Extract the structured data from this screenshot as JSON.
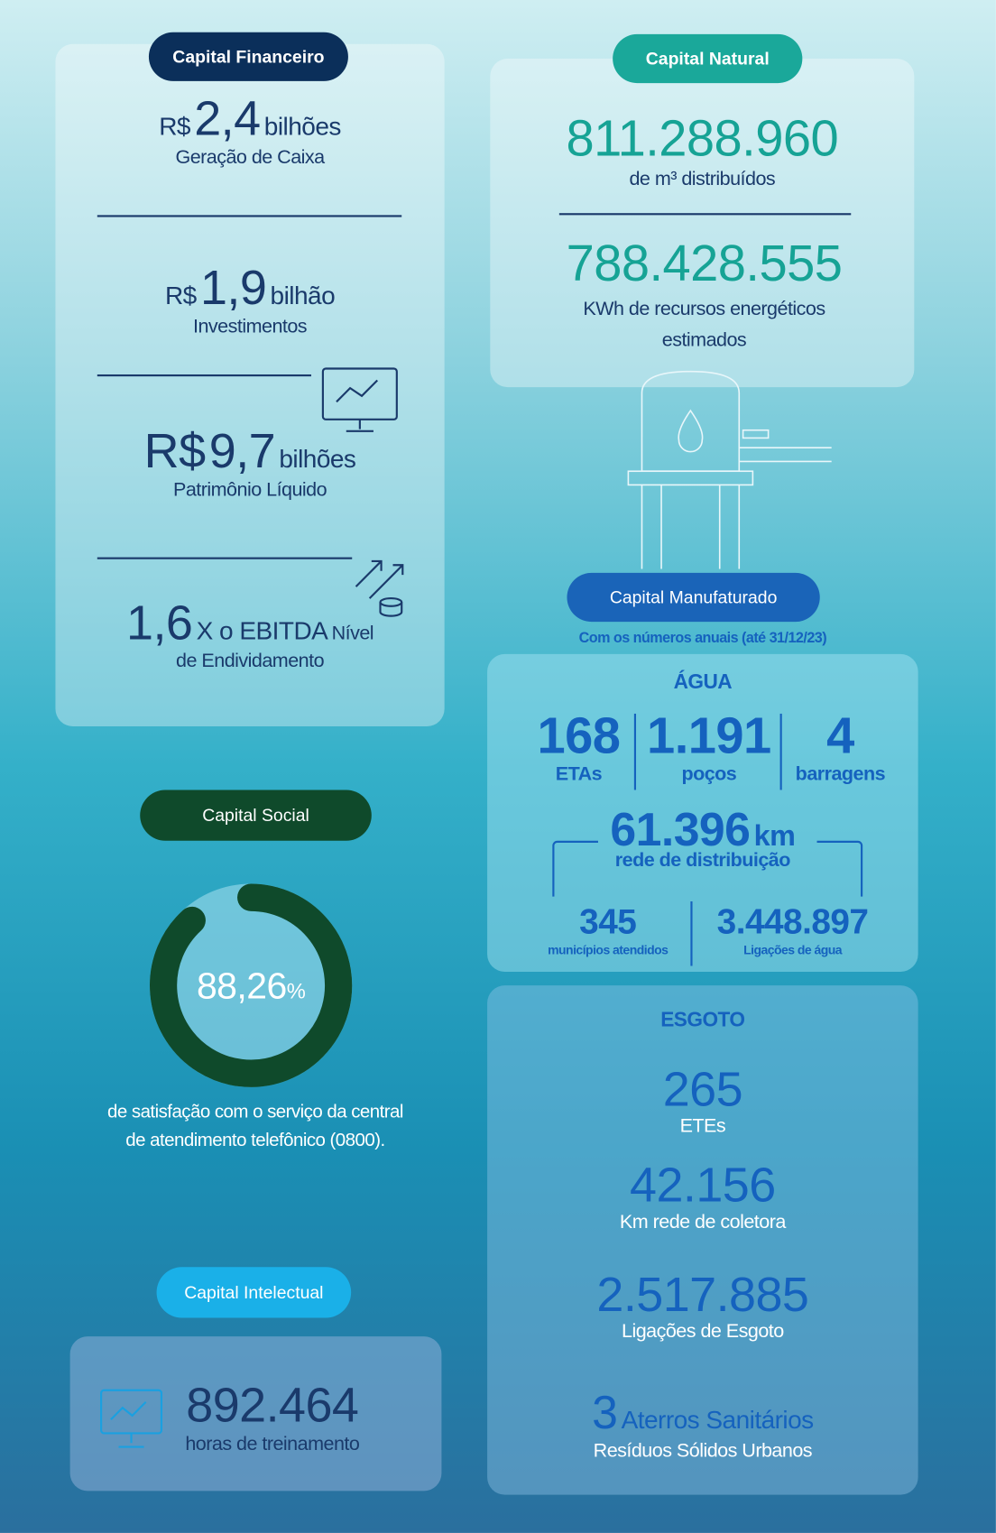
{
  "financial": {
    "badge": "Capital Financeiro",
    "items": [
      {
        "prefix": "R$",
        "value": "2,4",
        "unit": "bilhões",
        "label": "Geração de Caixa"
      },
      {
        "prefix": "R$",
        "value": "1,9",
        "unit": "bilhão",
        "label": "Investimentos"
      },
      {
        "prefix": "R$",
        "value": "9,7",
        "unit": "bilhões",
        "label": "Patrimônio Líquido"
      },
      {
        "value": "1,6",
        "unit": "X o EBITDA",
        "label": "Nível de Endividamento"
      }
    ]
  },
  "natural": {
    "badge": "Capital Natural",
    "items": [
      {
        "value": "811.288.960",
        "label": "de m³ distribuídos"
      },
      {
        "value": "788.428.555",
        "label": "KWh de recursos energéticos estimados"
      }
    ]
  },
  "manufactured": {
    "badge": "Capital Manufaturado",
    "subtitle": "Com os números anuais (até 31/12/23)",
    "water": {
      "title": "ÁGUA",
      "stats": [
        {
          "value": "168",
          "label": "ETAs"
        },
        {
          "value": "1.191",
          "label": "poços"
        },
        {
          "value": "4",
          "label": "barragens"
        }
      ],
      "network": {
        "value": "61.396",
        "unit": "km",
        "label": "rede de distribuição"
      },
      "bottom": [
        {
          "value": "345",
          "label": "municípios atendidos"
        },
        {
          "value": "3.448.897",
          "label": "Ligações de água"
        }
      ]
    },
    "sewage": {
      "title": "ESGOTO",
      "items": [
        {
          "value": "265",
          "label": "ETEs"
        },
        {
          "value": "42.156",
          "label": "Km rede de coletora"
        },
        {
          "value": "2.517.885",
          "label": "Ligações de Esgoto"
        },
        {
          "value": "3",
          "unit": "Aterros Sanitários",
          "label": "Resíduos Sólidos Urbanos"
        }
      ]
    }
  },
  "social": {
    "badge": "Capital Social",
    "percent": {
      "value": 88.26,
      "label": "88,26",
      "unit": "%"
    },
    "text": "de satisfação com o serviço da central de atendimento telefônico (0800)."
  },
  "intellectual": {
    "badge": "Capital Intelectual",
    "value": "892.464",
    "label": "horas de treinamento"
  }
}
